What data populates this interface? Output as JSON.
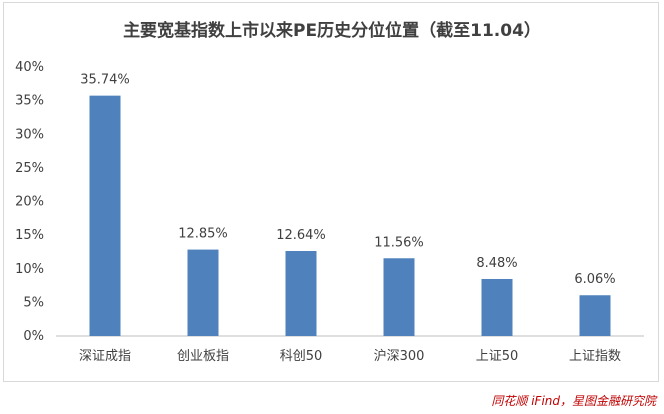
{
  "chart_data": {
    "type": "bar",
    "title": "主要宽基指数上市以来PE历史分位位置（截至11.04）",
    "categories": [
      "深证成指",
      "创业板指",
      "科创50",
      "沪深300",
      "上证50",
      "上证指数"
    ],
    "values": [
      35.74,
      12.85,
      12.64,
      11.56,
      8.48,
      6.06
    ],
    "data_labels": [
      "35.74%",
      "12.85%",
      "12.64%",
      "11.56%",
      "8.48%",
      "6.06%"
    ],
    "ylim": [
      0,
      40
    ],
    "yticks": [
      0,
      5,
      10,
      15,
      20,
      25,
      30,
      35,
      40
    ],
    "ytick_labels": [
      "0%",
      "5%",
      "10%",
      "15%",
      "20%",
      "25%",
      "30%",
      "35%",
      "40%"
    ],
    "grid": false,
    "legend": "none",
    "bar_color": "#4f81bd",
    "xlabel": "",
    "ylabel": ""
  },
  "source": "同花顺 iFind，星图金融研究院",
  "colors": {
    "source_text": "#c00000",
    "axis": "#bfbfbf",
    "text": "#404040"
  }
}
